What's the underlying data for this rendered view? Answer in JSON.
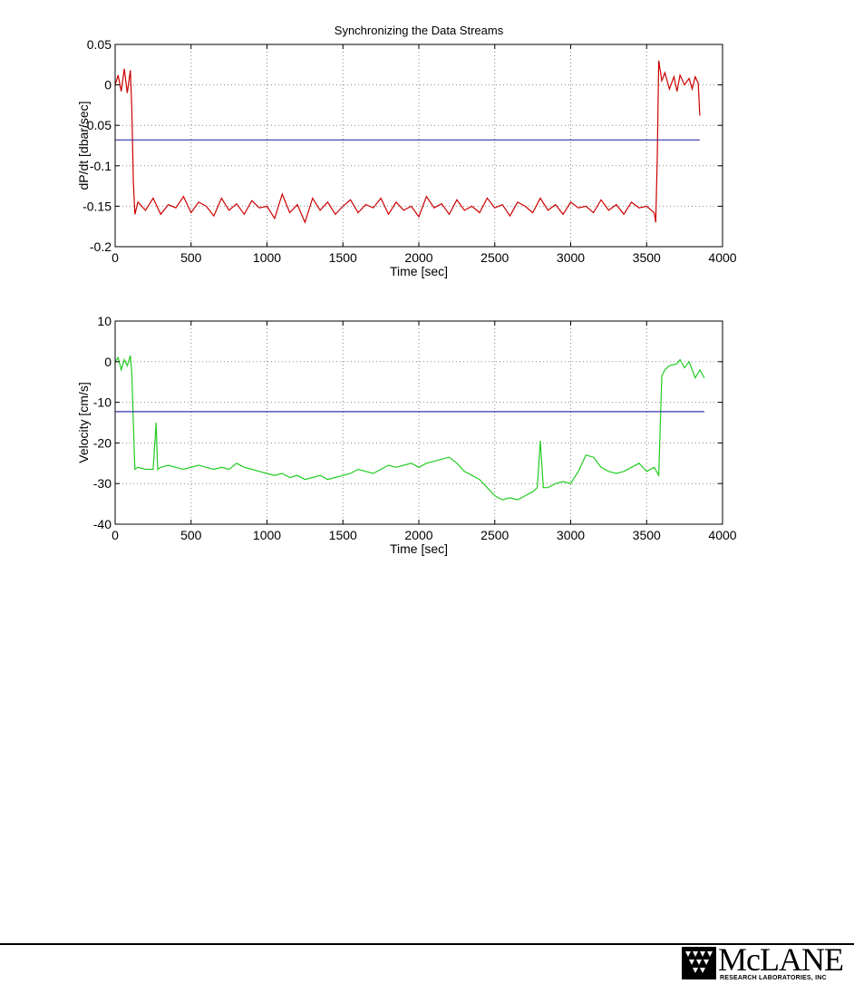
{
  "page": {
    "title": "Synchronizing the Data Streams"
  },
  "chart_data": [
    {
      "type": "line",
      "title": "Synchronizing the Data Streams",
      "xlabel": "Time [sec]",
      "ylabel": "dP/dt [dbar/sec]",
      "xlim": [
        0,
        4000
      ],
      "ylim": [
        -0.2,
        0.05
      ],
      "xticks": [
        0,
        500,
        1000,
        1500,
        2000,
        2500,
        3000,
        3500,
        4000
      ],
      "xtick_labels": [
        "0",
        "500",
        "1000",
        "1500",
        "2000",
        "2500",
        "3000",
        "3500",
        "4000"
      ],
      "yticks": [
        0.05,
        0,
        -0.05,
        -0.1,
        -0.15,
        -0.2
      ],
      "ytick_labels": [
        "0.05",
        "0",
        "-0.05",
        "-0.1",
        "-0.15",
        "-0.2"
      ],
      "grid": true,
      "series": [
        {
          "color": "#cc0000",
          "x": [
            0,
            20,
            40,
            60,
            80,
            100,
            110,
            120,
            130,
            150,
            200,
            250,
            300,
            350,
            400,
            450,
            500,
            550,
            600,
            650,
            700,
            750,
            800,
            850,
            900,
            950,
            1000,
            1050,
            1100,
            1150,
            1200,
            1250,
            1300,
            1350,
            1400,
            1450,
            1500,
            1550,
            1600,
            1650,
            1700,
            1750,
            1800,
            1850,
            1900,
            1950,
            2000,
            2050,
            2100,
            2150,
            2200,
            2250,
            2300,
            2350,
            2400,
            2450,
            2500,
            2550,
            2600,
            2650,
            2700,
            2750,
            2800,
            2850,
            2900,
            2950,
            3000,
            3050,
            3100,
            3150,
            3200,
            3250,
            3300,
            3350,
            3400,
            3450,
            3500,
            3550,
            3560,
            3570,
            3580,
            3600,
            3620,
            3650,
            3680,
            3700,
            3720,
            3750,
            3780,
            3800,
            3820,
            3840,
            3850
          ],
          "y": [
            0.0,
            0.012,
            -0.008,
            0.02,
            -0.01,
            0.018,
            -0.03,
            -0.12,
            -0.16,
            -0.145,
            -0.155,
            -0.14,
            -0.16,
            -0.148,
            -0.152,
            -0.138,
            -0.158,
            -0.145,
            -0.15,
            -0.162,
            -0.14,
            -0.155,
            -0.147,
            -0.16,
            -0.143,
            -0.152,
            -0.15,
            -0.165,
            -0.135,
            -0.158,
            -0.148,
            -0.17,
            -0.14,
            -0.155,
            -0.145,
            -0.16,
            -0.15,
            -0.142,
            -0.158,
            -0.148,
            -0.152,
            -0.14,
            -0.16,
            -0.145,
            -0.155,
            -0.15,
            -0.163,
            -0.138,
            -0.152,
            -0.147,
            -0.16,
            -0.142,
            -0.155,
            -0.15,
            -0.158,
            -0.14,
            -0.152,
            -0.148,
            -0.162,
            -0.145,
            -0.15,
            -0.158,
            -0.14,
            -0.155,
            -0.148,
            -0.16,
            -0.145,
            -0.152,
            -0.15,
            -0.158,
            -0.142,
            -0.155,
            -0.148,
            -0.16,
            -0.145,
            -0.152,
            -0.15,
            -0.158,
            -0.17,
            -0.09,
            0.03,
            0.005,
            0.015,
            -0.005,
            0.01,
            -0.008,
            0.012,
            0.0,
            0.008,
            -0.005,
            0.01,
            0.002,
            -0.038
          ]
        },
        {
          "color": "#3333aa",
          "x": [
            0,
            3850
          ],
          "y": [
            -0.068,
            -0.068
          ]
        }
      ]
    },
    {
      "type": "line",
      "title": "",
      "xlabel": "Time [sec]",
      "ylabel": "Velocity [cm/s]",
      "xlim": [
        0,
        4000
      ],
      "ylim": [
        -40,
        10
      ],
      "xticks": [
        0,
        500,
        1000,
        1500,
        2000,
        2500,
        3000,
        3500,
        4000
      ],
      "xtick_labels": [
        "0",
        "500",
        "1000",
        "1500",
        "2000",
        "2500",
        "3000",
        "3500",
        "4000"
      ],
      "yticks": [
        10,
        0,
        -10,
        -20,
        -30,
        -40
      ],
      "ytick_labels": [
        "10",
        "0",
        "-10",
        "-20",
        "-30",
        "-40"
      ],
      "grid": true,
      "series": [
        {
          "color": "#22cc22",
          "x": [
            0,
            20,
            40,
            60,
            80,
            100,
            110,
            120,
            130,
            150,
            200,
            250,
            270,
            280,
            300,
            350,
            400,
            450,
            500,
            550,
            600,
            650,
            700,
            750,
            800,
            850,
            900,
            950,
            1000,
            1050,
            1100,
            1150,
            1200,
            1250,
            1300,
            1350,
            1400,
            1450,
            1500,
            1550,
            1600,
            1650,
            1700,
            1750,
            1800,
            1850,
            1900,
            1950,
            2000,
            2050,
            2100,
            2150,
            2200,
            2250,
            2300,
            2350,
            2400,
            2450,
            2500,
            2550,
            2600,
            2650,
            2700,
            2750,
            2780,
            2800,
            2820,
            2850,
            2900,
            2950,
            3000,
            3050,
            3100,
            3150,
            3200,
            3250,
            3300,
            3350,
            3400,
            3450,
            3500,
            3550,
            3580,
            3600,
            3620,
            3650,
            3700,
            3720,
            3750,
            3780,
            3800,
            3820,
            3850,
            3880
          ],
          "y": [
            0,
            1,
            -2,
            0.5,
            -1,
            1.5,
            -3,
            -15,
            -26.5,
            -26,
            -26.5,
            -26.5,
            -15,
            -26.5,
            -26,
            -25.5,
            -26,
            -26.5,
            -26,
            -25.5,
            -26,
            -26.5,
            -26,
            -26.5,
            -25,
            -26,
            -26.5,
            -27,
            -27.5,
            -28,
            -27.5,
            -28.5,
            -28,
            -29,
            -28.5,
            -28,
            -29,
            -28.5,
            -28,
            -27.5,
            -26.5,
            -27,
            -27.5,
            -26.5,
            -25.5,
            -26,
            -25.5,
            -25,
            -26,
            -25,
            -24.5,
            -24,
            -23.5,
            -25,
            -27,
            -28,
            -29,
            -31,
            -33,
            -34,
            -33.5,
            -34,
            -33,
            -32,
            -31,
            -19.5,
            -31,
            -31,
            -30,
            -29.5,
            -30,
            -27,
            -23,
            -23.5,
            -26,
            -27,
            -27.5,
            -27,
            -26,
            -25,
            -27,
            -26,
            -28,
            -3.5,
            -2,
            -1,
            -0.5,
            0.5,
            -1.5,
            0,
            -2,
            -4,
            -2,
            -4
          ]
        },
        {
          "color": "#3333aa",
          "x": [
            0,
            3880
          ],
          "y": [
            -12.3,
            -12.3
          ]
        }
      ]
    }
  ],
  "footer": {
    "logo_text": "McLANE",
    "logo_subtitle": "RESEARCH LABORATORIES, INC"
  }
}
